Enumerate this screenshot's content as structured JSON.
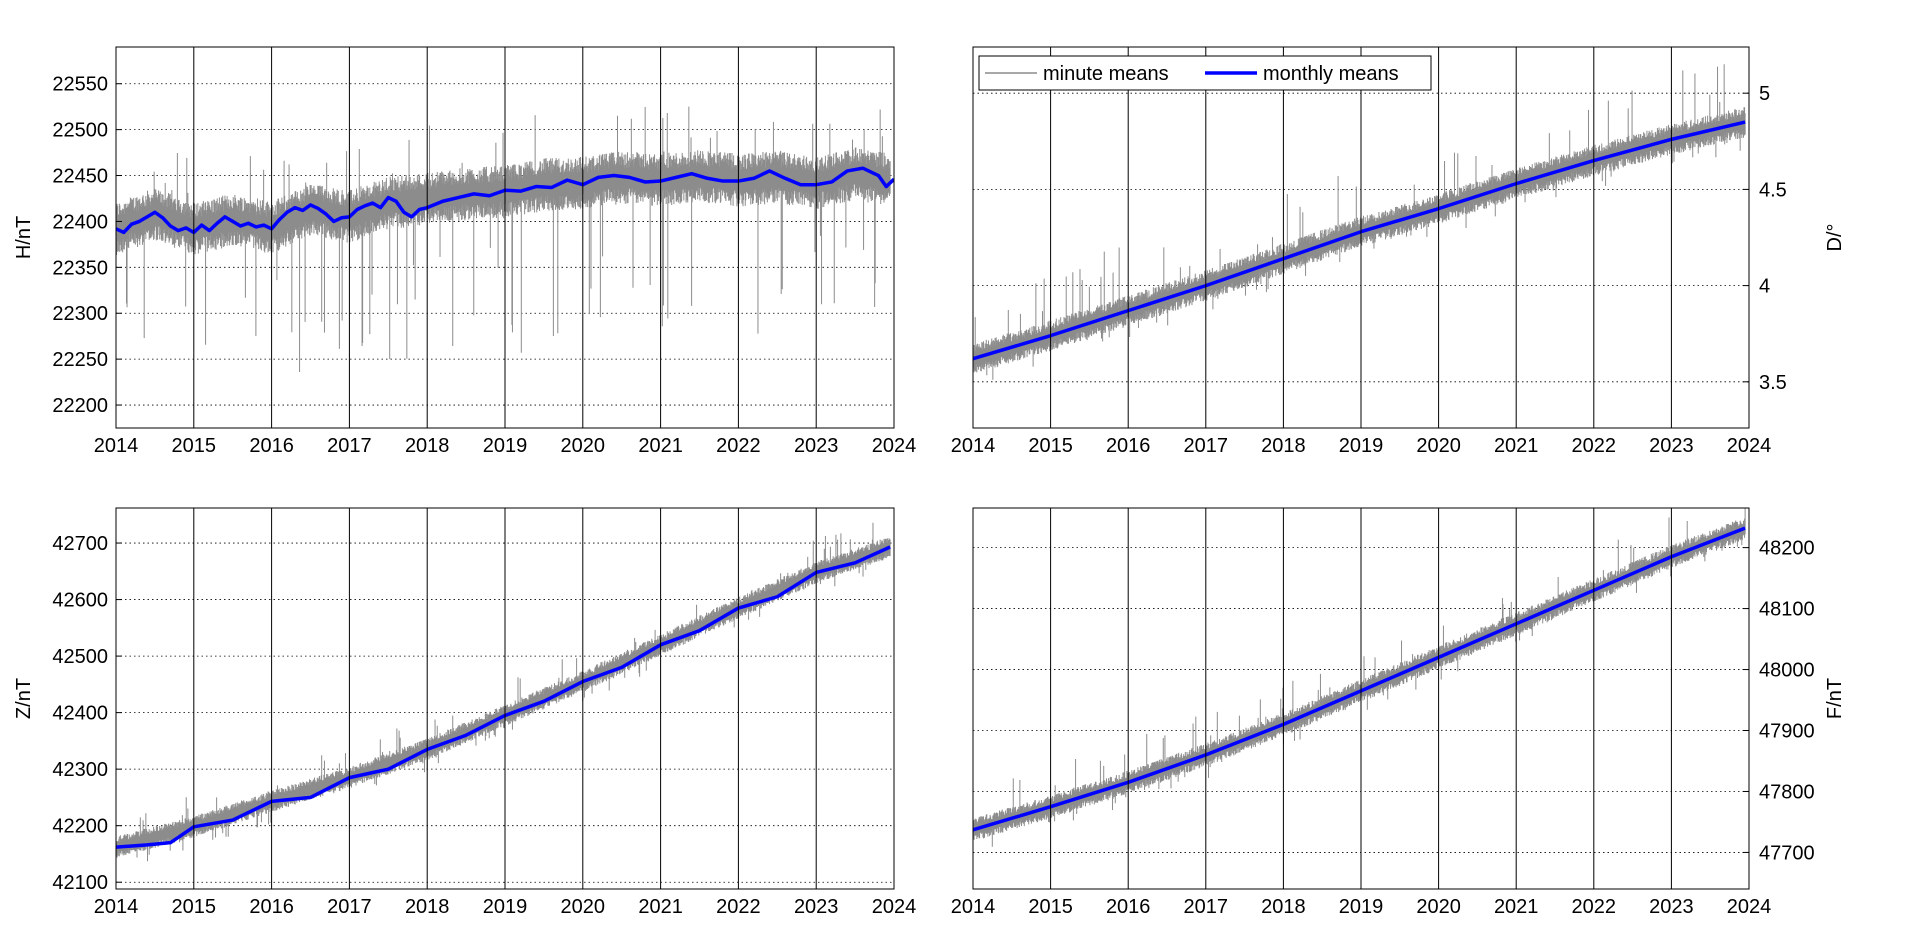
{
  "legend": {
    "minute_label": "minute means",
    "monthly_label": "monthly means",
    "placement": "top-left"
  },
  "colors": {
    "minute_series": "#8c8c8c",
    "monthly_series": "#0000ff",
    "grid": "#000000",
    "axes": "#000000"
  },
  "chart_data": [
    {
      "id": "H",
      "type": "line",
      "ylabel": "H/nT",
      "yaxis_side": "left",
      "xlim": [
        2014,
        2024
      ],
      "ylim": [
        22175,
        22590
      ],
      "xticks": [
        2014,
        2015,
        2016,
        2017,
        2018,
        2019,
        2020,
        2021,
        2022,
        2023,
        2024
      ],
      "yticks": [
        22200,
        22250,
        22300,
        22350,
        22400,
        22450,
        22500,
        22550
      ],
      "grid": true,
      "series": [
        {
          "name": "minute means",
          "noise": 18,
          "spike_down": 180,
          "spike_up": 80,
          "x": [
            2014.0,
            2014.5,
            2015.0,
            2015.5,
            2016.0,
            2016.5,
            2017.0,
            2017.5,
            2018.0,
            2018.5,
            2019.0,
            2019.5,
            2020.0,
            2020.5,
            2021.0,
            2021.5,
            2022.0,
            2022.5,
            2023.0,
            2023.5,
            2023.95
          ],
          "y": [
            22392,
            22408,
            22392,
            22402,
            22393,
            22413,
            22405,
            22420,
            22425,
            22430,
            22432,
            22440,
            22442,
            22448,
            22445,
            22450,
            22445,
            22448,
            22442,
            22452,
            22445
          ]
        },
        {
          "name": "monthly means",
          "x": [
            2014.0,
            2014.1,
            2014.2,
            2014.3,
            2014.4,
            2014.5,
            2014.6,
            2014.7,
            2014.8,
            2014.9,
            2015.0,
            2015.1,
            2015.2,
            2015.3,
            2015.4,
            2015.5,
            2015.6,
            2015.7,
            2015.8,
            2015.9,
            2016.0,
            2016.1,
            2016.2,
            2016.3,
            2016.4,
            2016.5,
            2016.6,
            2016.7,
            2016.8,
            2016.9,
            2017.0,
            2017.1,
            2017.2,
            2017.3,
            2017.4,
            2017.5,
            2017.6,
            2017.7,
            2017.8,
            2017.9,
            2018.0,
            2018.2,
            2018.4,
            2018.6,
            2018.8,
            2019.0,
            2019.2,
            2019.4,
            2019.6,
            2019.8,
            2020.0,
            2020.2,
            2020.4,
            2020.6,
            2020.8,
            2021.0,
            2021.2,
            2021.4,
            2021.6,
            2021.8,
            2022.0,
            2022.2,
            2022.4,
            2022.6,
            2022.8,
            2023.0,
            2023.2,
            2023.4,
            2023.6,
            2023.8,
            2023.9,
            2024.0
          ],
          "y": [
            22392,
            22388,
            22397,
            22400,
            22405,
            22410,
            22404,
            22395,
            22390,
            22393,
            22388,
            22396,
            22390,
            22398,
            22405,
            22400,
            22395,
            22398,
            22394,
            22396,
            22392,
            22402,
            22410,
            22415,
            22412,
            22418,
            22414,
            22408,
            22400,
            22404,
            22405,
            22413,
            22417,
            22420,
            22415,
            22426,
            22422,
            22410,
            22405,
            22413,
            22415,
            22422,
            22426,
            22430,
            22428,
            22434,
            22433,
            22438,
            22437,
            22445,
            22440,
            22448,
            22450,
            22448,
            22443,
            22444,
            22448,
            22452,
            22447,
            22444,
            22444,
            22447,
            22455,
            22447,
            22440,
            22440,
            22443,
            22455,
            22458,
            22450,
            22438,
            22446
          ]
        }
      ]
    },
    {
      "id": "D",
      "type": "line",
      "ylabel": "D/°",
      "yaxis_side": "right",
      "xlim": [
        2014,
        2024
      ],
      "ylim": [
        3.26,
        5.24
      ],
      "xticks": [
        2014,
        2015,
        2016,
        2017,
        2018,
        2019,
        2020,
        2021,
        2022,
        2023,
        2024
      ],
      "yticks": [
        3.5,
        4,
        4.5,
        5
      ],
      "ytick_labels": [
        "3.5",
        "4",
        "4.5",
        "5"
      ],
      "grid": true,
      "series": [
        {
          "name": "minute means",
          "noise": 0.05,
          "spike_down": 0.15,
          "spike_up": 0.35,
          "x": [
            2014.0,
            2015.0,
            2016.0,
            2017.0,
            2018.0,
            2019.0,
            2020.0,
            2021.0,
            2022.0,
            2023.0,
            2023.95
          ],
          "y": [
            3.62,
            3.74,
            3.87,
            4.0,
            4.14,
            4.28,
            4.4,
            4.53,
            4.65,
            4.76,
            4.85
          ]
        },
        {
          "name": "monthly means",
          "x": [
            2014.0,
            2015.0,
            2016.0,
            2017.0,
            2018.0,
            2019.0,
            2020.0,
            2021.0,
            2022.0,
            2023.0,
            2023.95
          ],
          "y": [
            3.62,
            3.74,
            3.87,
            4.0,
            4.14,
            4.28,
            4.4,
            4.53,
            4.65,
            4.76,
            4.85
          ]
        }
      ]
    },
    {
      "id": "Z",
      "type": "line",
      "ylabel": "Z/nT",
      "yaxis_side": "left",
      "xlim": [
        2014,
        2024
      ],
      "ylim": [
        42088,
        42762
      ],
      "xticks": [
        2014,
        2015,
        2016,
        2017,
        2018,
        2019,
        2020,
        2021,
        2022,
        2023,
        2024
      ],
      "yticks": [
        42100,
        42200,
        42300,
        42400,
        42500,
        42600,
        42700
      ],
      "grid": true,
      "series": [
        {
          "name": "minute means",
          "noise": 12,
          "spike_down": 40,
          "spike_up": 60,
          "x": [
            2014.0,
            2015.0,
            2016.0,
            2017.0,
            2018.0,
            2019.0,
            2020.0,
            2021.0,
            2022.0,
            2023.0,
            2023.95
          ],
          "y": [
            42162,
            42198,
            42243,
            42285,
            42335,
            42395,
            42455,
            42520,
            42585,
            42648,
            42693
          ]
        },
        {
          "name": "monthly means",
          "x": [
            2014.0,
            2014.4,
            2014.7,
            2015.0,
            2015.5,
            2016.0,
            2016.5,
            2017.0,
            2017.5,
            2018.0,
            2018.5,
            2019.0,
            2019.5,
            2020.0,
            2020.5,
            2021.0,
            2021.5,
            2022.0,
            2022.5,
            2023.0,
            2023.5,
            2023.95
          ],
          "y": [
            42162,
            42166,
            42170,
            42198,
            42210,
            42243,
            42250,
            42285,
            42300,
            42335,
            42360,
            42395,
            42420,
            42455,
            42480,
            42520,
            42545,
            42585,
            42605,
            42648,
            42665,
            42693
          ]
        }
      ]
    },
    {
      "id": "F",
      "type": "line",
      "ylabel": "F/nT",
      "yaxis_side": "right",
      "xlim": [
        2014,
        2024
      ],
      "ylim": [
        47640,
        48265
      ],
      "xticks": [
        2014,
        2015,
        2016,
        2017,
        2018,
        2019,
        2020,
        2021,
        2022,
        2023,
        2024
      ],
      "yticks": [
        47700,
        47800,
        47900,
        48000,
        48100,
        48200
      ],
      "grid": true,
      "series": [
        {
          "name": "minute means",
          "noise": 12,
          "spike_down": 40,
          "spike_up": 70,
          "x": [
            2014.0,
            2015.0,
            2016.0,
            2017.0,
            2018.0,
            2019.0,
            2020.0,
            2021.0,
            2022.0,
            2023.0,
            2023.95
          ],
          "y": [
            47737,
            47775,
            47815,
            47860,
            47910,
            47965,
            48020,
            48075,
            48130,
            48185,
            48232
          ]
        },
        {
          "name": "monthly means",
          "x": [
            2014.0,
            2015.0,
            2016.0,
            2017.0,
            2018.0,
            2019.0,
            2020.0,
            2021.0,
            2022.0,
            2023.0,
            2023.95
          ],
          "y": [
            47737,
            47775,
            47815,
            47860,
            47910,
            47965,
            48020,
            48075,
            48130,
            48185,
            48232
          ]
        }
      ]
    }
  ]
}
